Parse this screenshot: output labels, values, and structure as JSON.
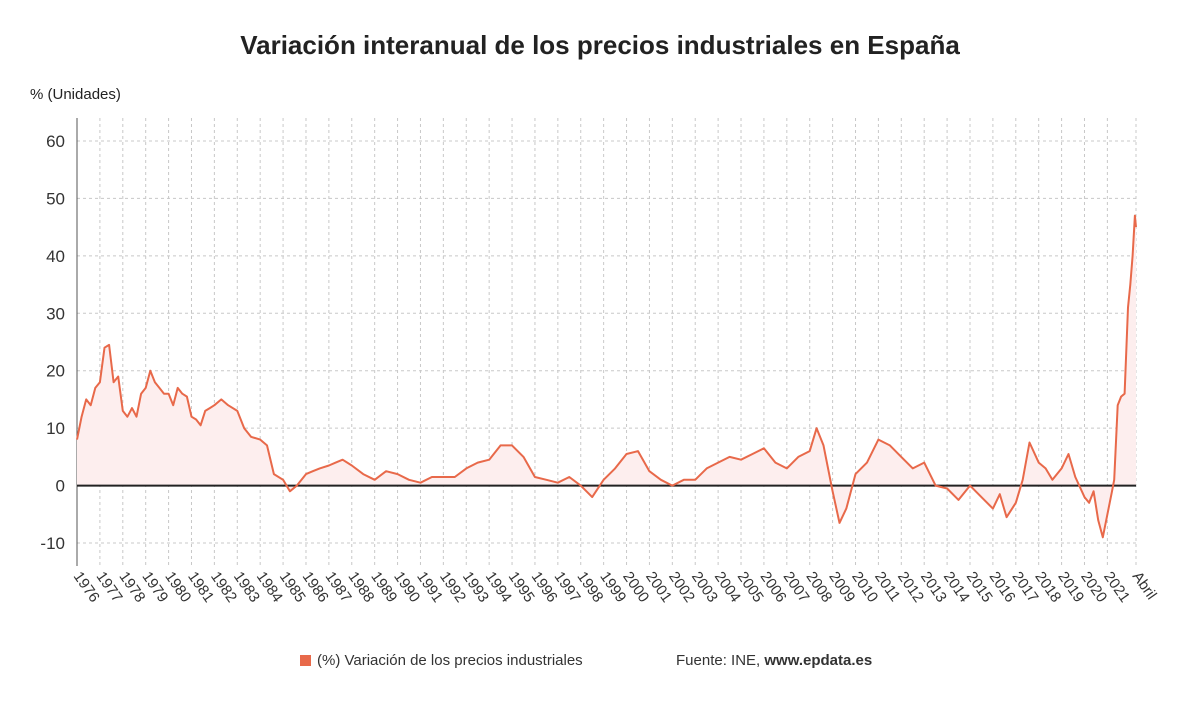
{
  "header": {
    "title": "Variación interanual de los precios industriales en España",
    "unit_label": "% (Unidades)"
  },
  "legend": {
    "series_label": "(%) Variación de los precios industriales",
    "source_prefix": "Fuente: INE,",
    "source_site": "www.epdata.es"
  },
  "colors": {
    "line": "#e8694a",
    "fill": "#fdeeee",
    "zero_line": "#222222",
    "grid": "#c8c8c8"
  },
  "chart_data": {
    "type": "area",
    "title": "Variación interanual de los precios industriales en España",
    "ylabel": "% (Unidades)",
    "ylim": [
      -14,
      64
    ],
    "yticks": [
      -10,
      0,
      10,
      20,
      30,
      40,
      50,
      60
    ],
    "xlim": [
      1976.0,
      2022.25
    ],
    "x_tick_labels": [
      "1976",
      "1977",
      "1978",
      "1979",
      "1980",
      "1981",
      "1982",
      "1983",
      "1984",
      "1985",
      "1986",
      "1987",
      "1988",
      "1989",
      "1990",
      "1991",
      "1992",
      "1993",
      "1994",
      "1995",
      "1996",
      "1997",
      "1998",
      "1999",
      "2000",
      "2001",
      "2002",
      "2003",
      "2004",
      "2005",
      "2006",
      "2007",
      "2008",
      "2009",
      "2010",
      "2011",
      "2012",
      "2013",
      "2014",
      "2015",
      "2016",
      "2017",
      "2018",
      "2019",
      "2020",
      "2021",
      "Abril"
    ],
    "grid": true,
    "legend_position": "bottom",
    "series": [
      {
        "name": "(%) Variación de los precios industriales",
        "x": [
          1976.0,
          1976.2,
          1976.4,
          1976.6,
          1976.8,
          1977.0,
          1977.2,
          1977.4,
          1977.6,
          1977.8,
          1978.0,
          1978.2,
          1978.4,
          1978.6,
          1978.8,
          1979.0,
          1979.2,
          1979.4,
          1979.6,
          1979.8,
          1980.0,
          1980.2,
          1980.4,
          1980.6,
          1980.8,
          1981.0,
          1981.2,
          1981.4,
          1981.6,
          1981.8,
          1982.0,
          1982.3,
          1982.6,
          1983.0,
          1983.3,
          1983.6,
          1984.0,
          1984.3,
          1984.6,
          1985.0,
          1985.3,
          1985.6,
          1986.0,
          1986.3,
          1986.6,
          1987.0,
          1987.3,
          1987.6,
          1988.0,
          1988.5,
          1989.0,
          1989.5,
          1990.0,
          1990.5,
          1991.0,
          1991.5,
          1992.0,
          1992.5,
          1993.0,
          1993.5,
          1994.0,
          1994.5,
          1995.0,
          1995.5,
          1996.0,
          1996.5,
          1997.0,
          1997.5,
          1998.0,
          1998.5,
          1999.0,
          1999.5,
          2000.0,
          2000.5,
          2001.0,
          2001.5,
          2002.0,
          2002.5,
          2003.0,
          2003.5,
          2004.0,
          2004.5,
          2005.0,
          2005.5,
          2006.0,
          2006.5,
          2007.0,
          2007.5,
          2008.0,
          2008.3,
          2008.6,
          2009.0,
          2009.3,
          2009.6,
          2010.0,
          2010.5,
          2011.0,
          2011.5,
          2012.0,
          2012.5,
          2013.0,
          2013.5,
          2014.0,
          2014.5,
          2015.0,
          2015.5,
          2016.0,
          2016.3,
          2016.6,
          2017.0,
          2017.3,
          2017.6,
          2018.0,
          2018.3,
          2018.6,
          2019.0,
          2019.3,
          2019.6,
          2020.0,
          2020.2,
          2020.4,
          2020.6,
          2020.8,
          2021.0,
          2021.1,
          2021.2,
          2021.3,
          2021.45,
          2021.6,
          2021.75,
          2021.9,
          2022.0,
          2022.1,
          2022.2,
          2022.25
        ],
        "values": [
          8,
          12,
          15,
          14,
          17,
          18,
          24,
          24.5,
          18,
          19,
          13,
          12,
          13.5,
          12,
          16,
          17,
          20,
          18,
          17,
          16,
          16,
          14,
          17,
          16,
          15.5,
          12,
          11.5,
          10.5,
          13,
          13.5,
          14,
          15,
          14,
          13,
          10,
          8.5,
          8,
          7,
          2,
          1,
          -1,
          0,
          2,
          2.5,
          3,
          3.5,
          4,
          4.5,
          3.5,
          2,
          1,
          2.5,
          2,
          1,
          0.5,
          1.5,
          1.5,
          1.5,
          3,
          4,
          4.5,
          7,
          7,
          5,
          1.5,
          1,
          0.5,
          1.5,
          0,
          -2,
          1,
          3,
          5.5,
          6,
          2.5,
          1,
          0,
          1,
          1,
          3,
          4,
          5,
          4.5,
          5.5,
          6.5,
          4,
          3,
          5,
          6,
          10,
          7,
          -1,
          -6.5,
          -4,
          2,
          4,
          8,
          7,
          5,
          3,
          4,
          0,
          -0.5,
          -2.5,
          0,
          -2,
          -4,
          -1.5,
          -5.5,
          -3,
          1,
          7.5,
          4,
          3,
          1,
          3,
          5.5,
          1.5,
          -2,
          -3,
          -1,
          -6,
          -9,
          -5,
          -3,
          -1,
          1,
          14,
          15.5,
          16,
          31,
          35,
          40,
          47,
          45
        ]
      }
    ]
  }
}
